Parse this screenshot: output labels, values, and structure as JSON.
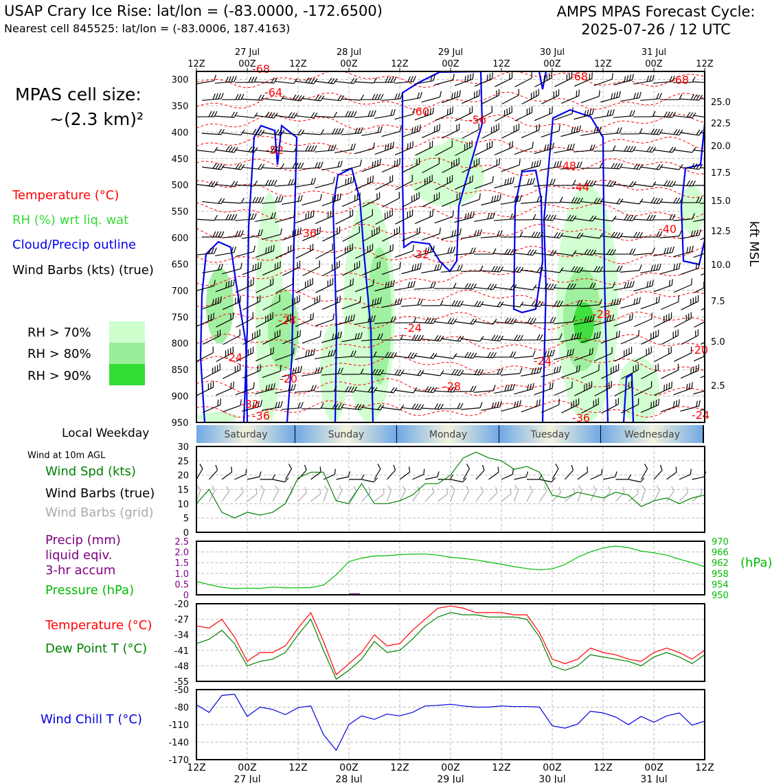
{
  "header": {
    "title_left": "USAP Crary Ice Rise: lat/lon = (-83.0000, -172.6500)",
    "subtitle_left": "Nearest cell 845525: lat/lon = (-83.0006, 187.4163)",
    "title_right_1": "AMPS MPAS Forecast Cycle:",
    "title_right_2": "2025-07-26 / 12 UTC"
  },
  "cell_size": {
    "line1": "MPAS cell size:",
    "line2": "~(2.3 km)²"
  },
  "legend": {
    "temperature": "Temperature (°C)",
    "rh": "RH (%) wrt liq. wat",
    "cloud": "Cloud/Precip outline",
    "wind": "Wind Barbs (kts) (true)",
    "rh70": "RH > 70%",
    "rh80": "RH > 80%",
    "rh90": "RH > 90%",
    "colors": {
      "temperature": "#ff0000",
      "rh": "#33dd33",
      "cloud": "#0000ee",
      "rh70": "#ccffcc",
      "rh80": "#99ee99",
      "rh90": "#33dd33"
    }
  },
  "time_axis": {
    "ticks": [
      "12Z",
      "00Z",
      "12Z",
      "00Z",
      "12Z",
      "00Z",
      "12Z",
      "00Z",
      "12Z",
      "00Z",
      "12Z"
    ],
    "dates": [
      "27 Jul",
      "28 Jul",
      "29 Jul",
      "30 Jul",
      "31 Jul"
    ]
  },
  "weekday": {
    "label": "Local Weekday",
    "days": [
      "Saturday",
      "Sunday",
      "Monday",
      "Tuesday",
      "Wednesday"
    ]
  },
  "wind_panel": {
    "note": "Wind at 10m AGL",
    "spd_label": "Wind Spd (kts)",
    "barbs_true_label": "Wind Barbs (true)",
    "barbs_grid_label": "Wind Barbs (grid)"
  },
  "precip_panel": {
    "precip_label_1": "Precip (mm)",
    "precip_label_2": "liquid eqiv.",
    "precip_label_3": "3-hr accum",
    "pressure_label": "Pressure (hPa)",
    "hpa_unit": "(hPa)"
  },
  "temp_panel": {
    "temp_label": "Temperature (°C)",
    "dew_label": "Dew Point T (°C)"
  },
  "chill_panel": {
    "label": "Wind Chill T (°C)"
  },
  "chart_data": [
    {
      "type": "heatmap",
      "name": "upper-air cross section",
      "x_hours": [
        0,
        120
      ],
      "y_label_right": "kft MSL",
      "y_pressure_ticks": [
        300,
        350,
        400,
        450,
        500,
        550,
        600,
        650,
        700,
        750,
        800,
        850,
        900,
        950
      ],
      "y_kft_ticks": [
        "25.0",
        "22.5",
        "20.0",
        "17.5",
        "15.0",
        "12.5",
        "10.0",
        "7.5",
        "5.0",
        "2.5"
      ],
      "temperature_contour_labels": [
        "-68",
        "-64",
        "-68",
        "-68",
        "-60",
        "-56",
        "-52",
        "-48",
        "-44",
        "-40",
        "-36",
        "-32",
        "-28",
        "-24",
        "-24",
        "-24",
        "-24",
        "-20",
        "-20",
        "-28",
        "-32",
        "-36",
        "-36",
        "-24"
      ]
    },
    {
      "type": "line",
      "name": "wind speed",
      "x_hours": [
        0,
        3,
        6,
        9,
        12,
        15,
        18,
        21,
        24,
        27,
        30,
        33,
        36,
        39,
        42,
        45,
        48,
        51,
        54,
        57,
        60,
        63,
        66,
        69,
        72,
        75,
        78,
        81,
        84,
        87,
        90,
        93,
        96,
        99,
        102,
        105,
        108,
        111,
        114,
        117,
        120
      ],
      "values": [
        10,
        15,
        7,
        5,
        7,
        6,
        7,
        10,
        19,
        21,
        21,
        11,
        10,
        17,
        10,
        10,
        11,
        13,
        17,
        17,
        20,
        26,
        28,
        26,
        25,
        22,
        23,
        21,
        13,
        12,
        14,
        13,
        12,
        14,
        13,
        9,
        11,
        12,
        10,
        12,
        13
      ],
      "ylim": [
        0,
        30
      ],
      "yticks": [
        0,
        5,
        10,
        15,
        20,
        25,
        30
      ],
      "color": "#008000"
    },
    {
      "type": "line",
      "name": "pressure",
      "x_hours": [
        0,
        3,
        6,
        9,
        12,
        15,
        18,
        21,
        24,
        27,
        30,
        33,
        36,
        39,
        42,
        45,
        48,
        51,
        54,
        57,
        60,
        63,
        66,
        69,
        72,
        75,
        78,
        81,
        84,
        87,
        90,
        93,
        96,
        99,
        102,
        105,
        108,
        111,
        114,
        117,
        120
      ],
      "values": [
        955,
        953.8,
        952.8,
        952.3,
        952.5,
        952.4,
        952.9,
        952.6,
        952.6,
        952.7,
        953.6,
        957.5,
        962.4,
        963.7,
        964.5,
        964.6,
        965,
        965.2,
        965.2,
        964.8,
        964,
        963.6,
        963,
        962.2,
        961.4,
        960.5,
        959.8,
        959.3,
        959.7,
        961.3,
        964,
        966,
        967.5,
        968.2,
        967.6,
        966.3,
        965.7,
        964.8,
        963.3,
        962,
        960.5
      ],
      "ylim": [
        950,
        970
      ],
      "yticks": [
        950,
        954,
        958,
        962,
        966,
        970
      ],
      "color": "#00bb00"
    },
    {
      "type": "bar",
      "name": "precip",
      "ylim": [
        0,
        2.5
      ],
      "yticks": [
        "0",
        "0.5",
        "1.0",
        "1.5",
        "2.0",
        "2.5"
      ],
      "color": "#800080"
    },
    {
      "type": "line",
      "name": "temperature and dew point",
      "x_hours": [
        0,
        3,
        6,
        9,
        12,
        15,
        18,
        21,
        24,
        27,
        30,
        33,
        36,
        39,
        42,
        45,
        48,
        51,
        54,
        57,
        60,
        63,
        66,
        69,
        72,
        75,
        78,
        81,
        84,
        87,
        90,
        93,
        96,
        99,
        102,
        105,
        108,
        111,
        114,
        117,
        120
      ],
      "series": [
        {
          "values": [
            -30,
            -31,
            -27,
            -35,
            -46,
            -42,
            -42,
            -39,
            -31,
            -24,
            -37,
            -52,
            -47,
            -42,
            -34,
            -39,
            -38,
            -32,
            -27,
            -22,
            -21,
            -22,
            -24,
            -24,
            -24,
            -25,
            -25,
            -33,
            -45,
            -47,
            -45,
            -40,
            -42,
            -43,
            -45,
            -46,
            -42,
            -40,
            -42,
            -45,
            -41
          ],
          "color": "#ff0000"
        },
        {
          "values": [
            -38,
            -36,
            -32,
            -38,
            -48,
            -46,
            -45,
            -42,
            -34,
            -27,
            -41,
            -54,
            -50,
            -45,
            -37,
            -42,
            -41,
            -36,
            -30,
            -26,
            -24,
            -25,
            -25,
            -26,
            -26,
            -26,
            -27,
            -35,
            -48,
            -50,
            -48,
            -43,
            -44,
            -45,
            -46,
            -48,
            -44,
            -42,
            -44,
            -47,
            -43
          ],
          "color": "#008000"
        }
      ],
      "ylim": [
        -55,
        -20
      ],
      "yticks": [
        -55,
        -48,
        -41,
        -34,
        -27,
        -20
      ]
    },
    {
      "type": "line",
      "name": "wind chill",
      "x_hours": [
        0,
        3,
        6,
        9,
        12,
        15,
        18,
        21,
        24,
        27,
        30,
        33,
        36,
        39,
        42,
        45,
        48,
        51,
        54,
        57,
        60,
        63,
        66,
        69,
        72,
        75,
        78,
        81,
        84,
        87,
        90,
        93,
        96,
        99,
        102,
        105,
        108,
        111,
        114,
        117,
        120
      ],
      "values": [
        -76,
        -89,
        -60,
        -58,
        -96,
        -80,
        -84,
        -93,
        -81,
        -78,
        -127,
        -154,
        -110,
        -95,
        -101,
        -92,
        -95,
        -89,
        -78,
        -77,
        -75,
        -78,
        -80,
        -80,
        -78,
        -79,
        -79,
        -80,
        -112,
        -116,
        -109,
        -87,
        -90,
        -97,
        -110,
        -96,
        -106,
        -95,
        -90,
        -111,
        -104
      ],
      "ylim": [
        -170,
        -50
      ],
      "yticks": [
        -170,
        -140,
        -110,
        -80,
        -50
      ],
      "color": "#0000dd"
    }
  ]
}
